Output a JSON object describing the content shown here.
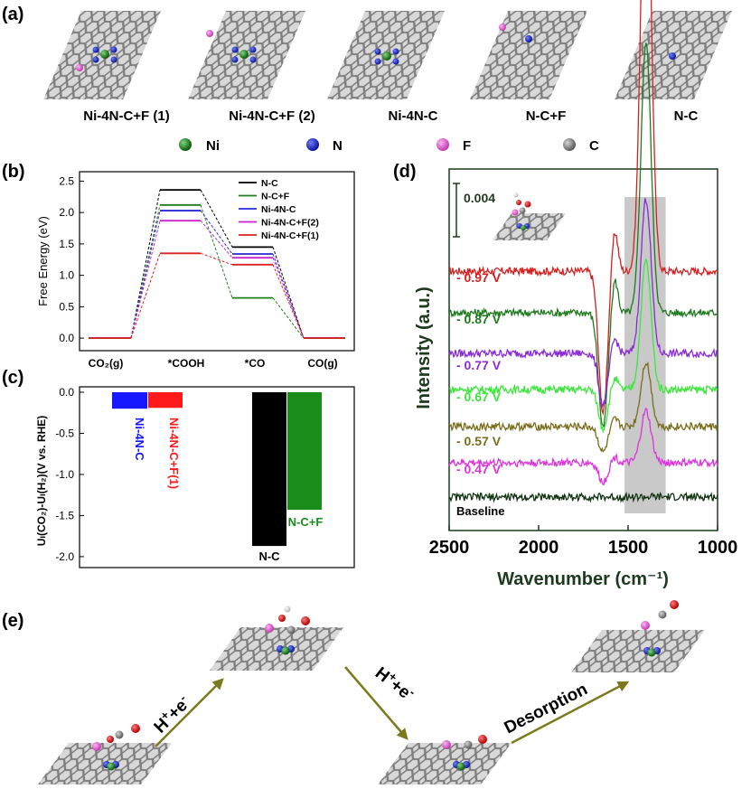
{
  "figure": {
    "panel_labels": [
      "(a)",
      "(b)",
      "(c)",
      "(d)",
      "(e)"
    ]
  },
  "panel_a": {
    "structures": [
      "Ni-4N-C+F (1)",
      "Ni-4N-C+F (2)",
      "Ni-4N-C",
      "N-C+F",
      "N-C"
    ],
    "legend": [
      {
        "label": "Ni",
        "color": "#1e7a1e"
      },
      {
        "label": "N",
        "color": "#1c2fd6"
      },
      {
        "label": "F",
        "color": "#e36fd6"
      },
      {
        "label": "C",
        "color": "#8f8f8f"
      }
    ]
  },
  "panel_e": {
    "steps": [
      "H",
      "+",
      "+e",
      "-",
      "H",
      "+",
      "+e",
      "-",
      "Desorption"
    ]
  },
  "chart_data": [
    {
      "id": "b",
      "type": "line",
      "title": "",
      "xlabel": "",
      "ylabel": "Free Energy (eV)",
      "categories": [
        "CO₂(g)",
        "*COOH",
        "*CO",
        "CO(g)"
      ],
      "ylim": [
        -0.2,
        2.65
      ],
      "yticks": [
        "0.0",
        "0.5",
        "1.0",
        "1.5",
        "2.0",
        "2.5"
      ],
      "legend_position": "top-right",
      "series": [
        {
          "name": "N-C",
          "color": "#000000",
          "values": [
            0,
            2.36,
            1.45,
            0
          ]
        },
        {
          "name": "N-C+F",
          "color": "#1a7f1a",
          "values": [
            0,
            2.12,
            0.64,
            0
          ]
        },
        {
          "name": "Ni-4N-C",
          "color": "#2a2ad8",
          "values": [
            0,
            2.03,
            1.34,
            0
          ]
        },
        {
          "name": "Ni-4N-C+F(2)",
          "color": "#cc22cc",
          "values": [
            0,
            1.87,
            1.28,
            0
          ]
        },
        {
          "name": "Ni-4N-C+F(1)",
          "color": "#dd2222",
          "values": [
            0,
            1.35,
            1.17,
            0
          ]
        }
      ]
    },
    {
      "id": "c",
      "type": "bar",
      "ylabel": "Uₗ(CO₂)-Uₗ(H₂)(V vs. RHE)",
      "ylim": [
        -2.1,
        0.0
      ],
      "yticks": [
        "0.0",
        "-0.5",
        "-1.0",
        "-1.5",
        "-2.0"
      ],
      "categories": [
        "Ni-4N-C",
        "Ni-4N-C+F(1)",
        "N-C",
        "N-C+F"
      ],
      "values": [
        -0.2,
        -0.19,
        -1.87,
        -1.43
      ],
      "colors": [
        "#1616ff",
        "#ff1a1a",
        "#000000",
        "#1a8c1a"
      ]
    },
    {
      "id": "d",
      "type": "line",
      "xlabel": "Wavenumber (cm⁻¹)",
      "ylabel": "Intensity  (a.u.)",
      "xlim": [
        2500,
        1000
      ],
      "xticks": [
        "2500",
        "2000",
        "1500",
        "1000"
      ],
      "scale_bar_label": "0.004",
      "highlight_band": [
        1520,
        1290
      ],
      "series": [
        {
          "name": "- 0.97 V",
          "color": "#d42020",
          "peak": 0.036,
          "dip": 0.011
        },
        {
          "name": "- 0.87 V",
          "color": "#1f7a1f",
          "peak": 0.021,
          "dip": 0.009
        },
        {
          "name": "- 0.77 V",
          "color": "#8a2bd8",
          "peak": 0.012,
          "dip": 0.004
        },
        {
          "name": "- 0.67 V",
          "color": "#3ee63e",
          "peak": 0.01,
          "dip": 0.003
        },
        {
          "name": "- 0.57 V",
          "color": "#7a6d1a",
          "peak": 0.005,
          "dip": 0.002
        },
        {
          "name": "- 0.47 V",
          "color": "#dd33dd",
          "peak": 0.004,
          "dip": 0.0015
        },
        {
          "name": "Baseline",
          "color": "#123312",
          "peak": 0.0,
          "dip": 0.0
        }
      ]
    }
  ]
}
